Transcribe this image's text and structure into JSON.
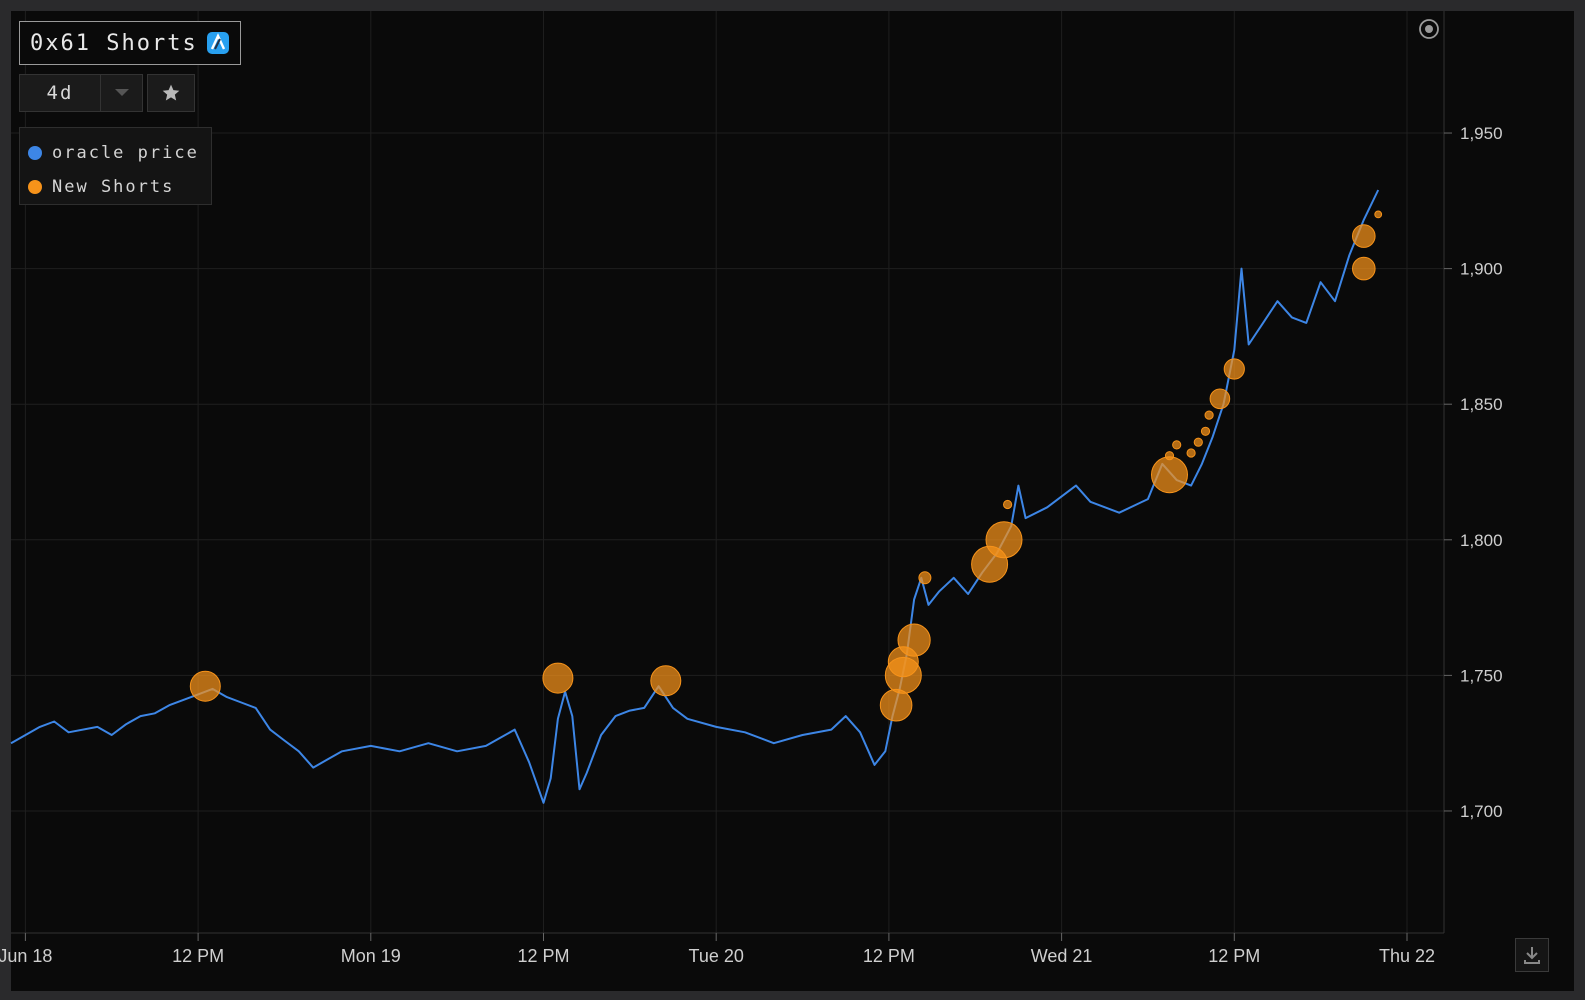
{
  "header": {
    "title": "0x61 Shorts",
    "chain_icon": "arbitrum-icon",
    "range_value": "4d"
  },
  "legend": {
    "items": [
      {
        "label": "oracle price",
        "color": "#3d86e6"
      },
      {
        "label": "New Shorts",
        "color": "#f7931a"
      }
    ]
  },
  "icons": {
    "range_caret": "chevron-down-icon",
    "favorite": "star-icon",
    "target": "target-icon",
    "download": "download-icon"
  },
  "chart_data": {
    "type": "line",
    "x_axis": {
      "start": "2023-06-17T23:00",
      "end": "2023-06-22T00:00",
      "ticks": [
        {
          "t": "2023-06-18T00:00",
          "label": "Jun 18"
        },
        {
          "t": "2023-06-18T12:00",
          "label": "12 PM"
        },
        {
          "t": "2023-06-19T00:00",
          "label": "Mon 19"
        },
        {
          "t": "2023-06-19T12:00",
          "label": "12 PM"
        },
        {
          "t": "2023-06-20T00:00",
          "label": "Tue 20"
        },
        {
          "t": "2023-06-20T12:00",
          "label": "12 PM"
        },
        {
          "t": "2023-06-21T00:00",
          "label": "Wed 21"
        },
        {
          "t": "2023-06-21T12:00",
          "label": "12 PM"
        },
        {
          "t": "2023-06-22T00:00",
          "label": "Thu 22"
        }
      ]
    },
    "y_axis": {
      "min": 1655,
      "max": 1995,
      "ticks": [
        1700,
        1750,
        1800,
        1850,
        1900,
        1950
      ],
      "tick_labels": [
        "1,700",
        "1,750",
        "1,800",
        "1,850",
        "1,900",
        "1,950"
      ],
      "position": "right"
    },
    "grid": true,
    "series": [
      {
        "name": "oracle price",
        "color": "#3d86e6",
        "type": "line",
        "points": [
          [
            "2023-06-17T23:00",
            1725
          ],
          [
            "2023-06-18T01:00",
            1731
          ],
          [
            "2023-06-18T02:00",
            1733
          ],
          [
            "2023-06-18T03:00",
            1729
          ],
          [
            "2023-06-18T05:00",
            1731
          ],
          [
            "2023-06-18T06:00",
            1728
          ],
          [
            "2023-06-18T07:00",
            1732
          ],
          [
            "2023-06-18T08:00",
            1735
          ],
          [
            "2023-06-18T09:00",
            1736
          ],
          [
            "2023-06-18T10:00",
            1739
          ],
          [
            "2023-06-18T11:00",
            1741
          ],
          [
            "2023-06-18T12:00",
            1743
          ],
          [
            "2023-06-18T13:00",
            1745
          ],
          [
            "2023-06-18T14:00",
            1742
          ],
          [
            "2023-06-18T15:00",
            1740
          ],
          [
            "2023-06-18T16:00",
            1738
          ],
          [
            "2023-06-18T17:00",
            1730
          ],
          [
            "2023-06-18T18:00",
            1726
          ],
          [
            "2023-06-18T19:00",
            1722
          ],
          [
            "2023-06-18T20:00",
            1716
          ],
          [
            "2023-06-18T21:00",
            1719
          ],
          [
            "2023-06-18T22:00",
            1722
          ],
          [
            "2023-06-19T00:00",
            1724
          ],
          [
            "2023-06-19T02:00",
            1722
          ],
          [
            "2023-06-19T04:00",
            1725
          ],
          [
            "2023-06-19T06:00",
            1722
          ],
          [
            "2023-06-19T08:00",
            1724
          ],
          [
            "2023-06-19T09:00",
            1727
          ],
          [
            "2023-06-19T10:00",
            1730
          ],
          [
            "2023-06-19T11:00",
            1718
          ],
          [
            "2023-06-19T12:00",
            1703
          ],
          [
            "2023-06-19T12:30",
            1712
          ],
          [
            "2023-06-19T13:00",
            1734
          ],
          [
            "2023-06-19T13:30",
            1744
          ],
          [
            "2023-06-19T14:00",
            1735
          ],
          [
            "2023-06-19T14:30",
            1708
          ],
          [
            "2023-06-19T15:00",
            1714
          ],
          [
            "2023-06-19T16:00",
            1728
          ],
          [
            "2023-06-19T17:00",
            1735
          ],
          [
            "2023-06-19T18:00",
            1737
          ],
          [
            "2023-06-19T19:00",
            1738
          ],
          [
            "2023-06-19T20:00",
            1746
          ],
          [
            "2023-06-19T21:00",
            1738
          ],
          [
            "2023-06-19T22:00",
            1734
          ],
          [
            "2023-06-20T00:00",
            1731
          ],
          [
            "2023-06-20T02:00",
            1729
          ],
          [
            "2023-06-20T04:00",
            1725
          ],
          [
            "2023-06-20T06:00",
            1728
          ],
          [
            "2023-06-20T08:00",
            1730
          ],
          [
            "2023-06-20T09:00",
            1735
          ],
          [
            "2023-06-20T10:00",
            1729
          ],
          [
            "2023-06-20T11:00",
            1717
          ],
          [
            "2023-06-20T11:45",
            1722
          ],
          [
            "2023-06-20T12:15",
            1735
          ],
          [
            "2023-06-20T12:45",
            1745
          ],
          [
            "2023-06-20T13:15",
            1758
          ],
          [
            "2023-06-20T13:45",
            1778
          ],
          [
            "2023-06-20T14:15",
            1786
          ],
          [
            "2023-06-20T14:45",
            1776
          ],
          [
            "2023-06-20T15:30",
            1781
          ],
          [
            "2023-06-20T16:30",
            1786
          ],
          [
            "2023-06-20T17:30",
            1780
          ],
          [
            "2023-06-20T18:30",
            1788
          ],
          [
            "2023-06-20T19:30",
            1795
          ],
          [
            "2023-06-20T20:30",
            1805
          ],
          [
            "2023-06-20T21:00",
            1820
          ],
          [
            "2023-06-20T21:30",
            1808
          ],
          [
            "2023-06-20T23:00",
            1812
          ],
          [
            "2023-06-21T01:00",
            1820
          ],
          [
            "2023-06-21T02:00",
            1814
          ],
          [
            "2023-06-21T04:00",
            1810
          ],
          [
            "2023-06-21T06:00",
            1815
          ],
          [
            "2023-06-21T07:00",
            1828
          ],
          [
            "2023-06-21T08:00",
            1822
          ],
          [
            "2023-06-21T09:00",
            1820
          ],
          [
            "2023-06-21T09:45",
            1828
          ],
          [
            "2023-06-21T10:30",
            1838
          ],
          [
            "2023-06-21T11:15",
            1850
          ],
          [
            "2023-06-21T12:00",
            1870
          ],
          [
            "2023-06-21T12:30",
            1900
          ],
          [
            "2023-06-21T13:00",
            1872
          ],
          [
            "2023-06-21T14:00",
            1880
          ],
          [
            "2023-06-21T15:00",
            1888
          ],
          [
            "2023-06-21T16:00",
            1882
          ],
          [
            "2023-06-21T17:00",
            1880
          ],
          [
            "2023-06-21T18:00",
            1895
          ],
          [
            "2023-06-21T19:00",
            1888
          ],
          [
            "2023-06-21T20:00",
            1905
          ],
          [
            "2023-06-21T21:00",
            1918
          ],
          [
            "2023-06-21T22:00",
            1929
          ]
        ]
      },
      {
        "name": "New Shorts",
        "color": "#f7931a",
        "type": "bubble",
        "points": [
          [
            "2023-06-18T12:30",
            1746,
            4
          ],
          [
            "2023-06-19T13:00",
            1749,
            4
          ],
          [
            "2023-06-19T20:30",
            1748,
            4
          ],
          [
            "2023-06-20T12:30",
            1739,
            4.2
          ],
          [
            "2023-06-20T13:00",
            1750,
            4.8
          ],
          [
            "2023-06-20T13:00",
            1755,
            4
          ],
          [
            "2023-06-20T13:45",
            1763,
            4.3
          ],
          [
            "2023-06-20T14:30",
            1786,
            1.6
          ],
          [
            "2023-06-20T19:00",
            1791,
            4.8
          ],
          [
            "2023-06-20T20:00",
            1800,
            4.8
          ],
          [
            "2023-06-20T20:15",
            1813,
            1.1
          ],
          [
            "2023-06-21T07:30",
            1824,
            4.8
          ],
          [
            "2023-06-21T07:30",
            1831,
            1.1
          ],
          [
            "2023-06-21T08:00",
            1835,
            1.1
          ],
          [
            "2023-06-21T09:00",
            1832,
            1.1
          ],
          [
            "2023-06-21T09:30",
            1836,
            1.1
          ],
          [
            "2023-06-21T10:00",
            1840,
            1.1
          ],
          [
            "2023-06-21T10:15",
            1846,
            1.1
          ],
          [
            "2023-06-21T11:00",
            1852,
            2.6
          ],
          [
            "2023-06-21T12:00",
            1863,
            2.7
          ],
          [
            "2023-06-21T21:00",
            1900,
            3
          ],
          [
            "2023-06-21T21:00",
            1912,
            3
          ],
          [
            "2023-06-21T22:00",
            1920,
            0.9
          ]
        ]
      }
    ]
  }
}
